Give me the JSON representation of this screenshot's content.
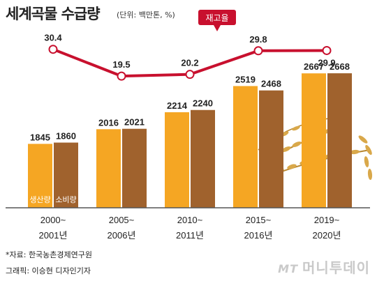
{
  "header": {
    "title": "세계곡물 수급량",
    "unit": "(단위: 백만톤, %)"
  },
  "chart_data": {
    "type": "bar",
    "categories": [
      "2000~\n2001년",
      "2005~\n2006년",
      "2010~\n2011년",
      "2015~\n2016년",
      "2019~\n2020년"
    ],
    "series": [
      {
        "name": "생산량",
        "values": [
          1845,
          2016,
          2214,
          2519,
          2667
        ],
        "color": "#f5a623"
      },
      {
        "name": "소비량",
        "values": [
          1860,
          2021,
          2240,
          2468,
          2668
        ],
        "color": "#a0622d"
      }
    ],
    "line": {
      "name": "재고율",
      "values": [
        30.4,
        19.5,
        20.2,
        29.8,
        29.9
      ],
      "color": "#c8102e"
    },
    "bar_value_range": [
      1100,
      2750
    ],
    "line_value_range": [
      15,
      34
    ]
  },
  "footer": {
    "source": "*자료: 한국농촌경제연구원",
    "credit": "그래픽: 이승현 디자인기자",
    "logo_mt": "MT",
    "logo_text": "머니투데이"
  }
}
